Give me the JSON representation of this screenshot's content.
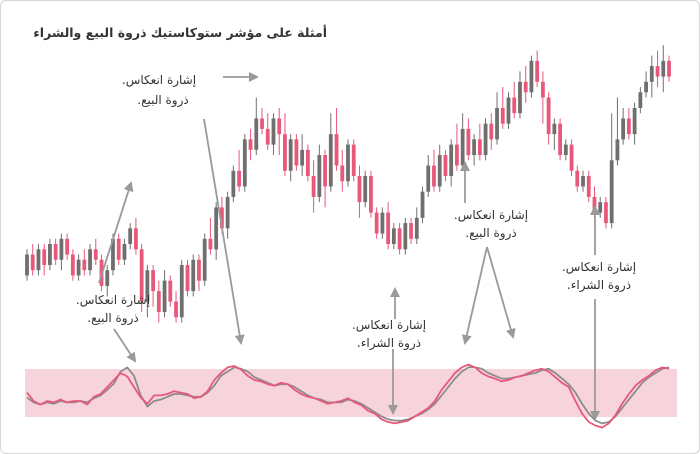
{
  "title": "أمثلة على مؤشر ستوكاستيك ذروة البيع والشراء",
  "annotations": [
    {
      "id": "a1",
      "line1": "إشارة انعكاس.",
      "line2": "ذروة البيع."
    },
    {
      "id": "a2",
      "line1": "إشارة انعكاس.",
      "line2": "ذروة البيع."
    },
    {
      "id": "a3",
      "line1": "إشارة انعكاس.",
      "line2": "ذروة الشراء."
    },
    {
      "id": "a4",
      "line1": "إشارة انعكاس.",
      "line2": "ذروة البيع."
    },
    {
      "id": "a5",
      "line1": "إشارة انعكاس.",
      "line2": "ذروة الشراء."
    }
  ],
  "colors": {
    "bull": "#6f6f6f",
    "bear": "#e8587a",
    "band": "#f7d3db",
    "k_line": "#e8587a",
    "d_line": "#8c8c8c",
    "arrow": "#9a9a9a"
  },
  "chart_data": {
    "type": "candlestick",
    "candles": [
      [
        21,
        25,
        20,
        26
      ],
      [
        25,
        22,
        21,
        27
      ],
      [
        22,
        26,
        21,
        27
      ],
      [
        26,
        23,
        21,
        27
      ],
      [
        23,
        27,
        22,
        28
      ],
      [
        27,
        24,
        23,
        28
      ],
      [
        24,
        28,
        22,
        29
      ],
      [
        28,
        25,
        24,
        29
      ],
      [
        25,
        21,
        20,
        26
      ],
      [
        21,
        24,
        20,
        25
      ],
      [
        24,
        22,
        21,
        26
      ],
      [
        22,
        26,
        21,
        27
      ],
      [
        26,
        24,
        23,
        28
      ],
      [
        24,
        19,
        18,
        25
      ],
      [
        19,
        22,
        17,
        23
      ],
      [
        22,
        28,
        21,
        29
      ],
      [
        28,
        24,
        23,
        29
      ],
      [
        24,
        27,
        23,
        28
      ],
      [
        27,
        30,
        26,
        31
      ],
      [
        30,
        26,
        25,
        32
      ],
      [
        26,
        16,
        14,
        27
      ],
      [
        16,
        22,
        13,
        23
      ],
      [
        22,
        18,
        15,
        23
      ],
      [
        18,
        14,
        12,
        20
      ],
      [
        14,
        20,
        13,
        22
      ],
      [
        20,
        16,
        15,
        21
      ],
      [
        16,
        13,
        12,
        18
      ],
      [
        13,
        23,
        12,
        24
      ],
      [
        23,
        18,
        17,
        24
      ],
      [
        18,
        24,
        17,
        25
      ],
      [
        24,
        20,
        18,
        25
      ],
      [
        20,
        28,
        19,
        29
      ],
      [
        28,
        26,
        25,
        32
      ],
      [
        26,
        34,
        24,
        35
      ],
      [
        34,
        30,
        29,
        36
      ],
      [
        30,
        36,
        28,
        37
      ],
      [
        36,
        41,
        35,
        42
      ],
      [
        41,
        38,
        37,
        45
      ],
      [
        38,
        47,
        37,
        48
      ],
      [
        47,
        45,
        43,
        49
      ],
      [
        45,
        51,
        44,
        55
      ],
      [
        51,
        49,
        48,
        53
      ],
      [
        49,
        46,
        45,
        52
      ],
      [
        46,
        51,
        44,
        52
      ],
      [
        51,
        48,
        44,
        53
      ],
      [
        48,
        41,
        40,
        52
      ],
      [
        41,
        47,
        39,
        48
      ],
      [
        47,
        42,
        41,
        48
      ],
      [
        42,
        45,
        40,
        48
      ],
      [
        45,
        40,
        39,
        46
      ],
      [
        40,
        36,
        33,
        43
      ],
      [
        36,
        44,
        35,
        46
      ],
      [
        44,
        38,
        34,
        45
      ],
      [
        38,
        48,
        37,
        52
      ],
      [
        48,
        42,
        41,
        53
      ],
      [
        42,
        39,
        37,
        45
      ],
      [
        39,
        46,
        38,
        47
      ],
      [
        46,
        40,
        39,
        47
      ],
      [
        40,
        35,
        32,
        42
      ],
      [
        35,
        40,
        34,
        41
      ],
      [
        40,
        33,
        32,
        41
      ],
      [
        33,
        29,
        28,
        34
      ],
      [
        29,
        33,
        28,
        34
      ],
      [
        33,
        27,
        26,
        35
      ],
      [
        27,
        30,
        26,
        31
      ],
      [
        30,
        26,
        25,
        31
      ],
      [
        26,
        31,
        25,
        32
      ],
      [
        31,
        28,
        27,
        32
      ],
      [
        28,
        32,
        27,
        34
      ],
      [
        32,
        37,
        31,
        38
      ],
      [
        37,
        42,
        36,
        44
      ],
      [
        42,
        38,
        37,
        45
      ],
      [
        38,
        44,
        37,
        46
      ],
      [
        44,
        40,
        39,
        45
      ],
      [
        40,
        46,
        38,
        47
      ],
      [
        46,
        42,
        41,
        50
      ],
      [
        42,
        49,
        41,
        52
      ],
      [
        49,
        44,
        43,
        51
      ],
      [
        44,
        47,
        42,
        48
      ],
      [
        47,
        44,
        43,
        50
      ],
      [
        44,
        50,
        43,
        51
      ],
      [
        50,
        47,
        45,
        52
      ],
      [
        47,
        53,
        46,
        56
      ],
      [
        53,
        50,
        49,
        57
      ],
      [
        50,
        55,
        49,
        56
      ],
      [
        55,
        52,
        51,
        58
      ],
      [
        52,
        58,
        51,
        60
      ],
      [
        58,
        56,
        54,
        61
      ],
      [
        56,
        62,
        55,
        63
      ],
      [
        62,
        58,
        57,
        64
      ],
      [
        58,
        55,
        50,
        60
      ],
      [
        55,
        48,
        46,
        56
      ],
      [
        48,
        50,
        45,
        51
      ],
      [
        50,
        44,
        43,
        51
      ],
      [
        44,
        46,
        43,
        47
      ],
      [
        46,
        41,
        40,
        47
      ],
      [
        41,
        38,
        37,
        42
      ],
      [
        38,
        40,
        37,
        41
      ],
      [
        40,
        36,
        35,
        41
      ],
      [
        36,
        33,
        32,
        38
      ],
      [
        33,
        35,
        32,
        36
      ],
      [
        35,
        31,
        30,
        36
      ],
      [
        31,
        43,
        30,
        52
      ],
      [
        43,
        47,
        42,
        55
      ],
      [
        47,
        51,
        46,
        53
      ],
      [
        51,
        48,
        47,
        53
      ],
      [
        48,
        53,
        46,
        54
      ],
      [
        53,
        56,
        52,
        57
      ],
      [
        56,
        58,
        55,
        60
      ],
      [
        58,
        61,
        55,
        63
      ],
      [
        61,
        59,
        57,
        64
      ],
      [
        59,
        62,
        56,
        65
      ],
      [
        62,
        59,
        58,
        63
      ]
    ],
    "stoch_k": [
      52,
      40,
      35,
      40,
      38,
      42,
      38,
      40,
      40,
      35,
      46,
      50,
      60,
      70,
      80,
      75,
      60,
      45,
      36,
      48,
      48,
      50,
      54,
      52,
      50,
      44,
      46,
      54,
      70,
      80,
      88,
      90,
      85,
      76,
      70,
      68,
      64,
      62,
      66,
      64,
      56,
      50,
      46,
      44,
      40,
      36,
      38,
      40,
      44,
      38,
      34,
      26,
      22,
      14,
      10,
      8,
      10,
      12,
      18,
      24,
      30,
      40,
      56,
      68,
      80,
      88,
      92,
      88,
      80,
      75,
      72,
      68,
      70,
      74,
      76,
      80,
      84,
      86,
      82,
      74,
      66,
      60,
      40,
      22,
      10,
      5,
      2,
      8,
      20,
      36,
      50,
      62,
      70,
      76,
      84,
      88,
      86
    ],
    "stoch_d": [
      45,
      38,
      35,
      38,
      36,
      40,
      38,
      38,
      40,
      38,
      44,
      48,
      56,
      65,
      82,
      88,
      76,
      48,
      32,
      40,
      42,
      46,
      50,
      50,
      48,
      46,
      46,
      52,
      62,
      76,
      82,
      88,
      86,
      82,
      74,
      70,
      66,
      62,
      64,
      64,
      60,
      54,
      48,
      44,
      42,
      38,
      38,
      38,
      42,
      40,
      36,
      30,
      24,
      18,
      14,
      12,
      12,
      14,
      18,
      22,
      28,
      36,
      48,
      60,
      72,
      82,
      88,
      88,
      86,
      80,
      76,
      72,
      72,
      74,
      76,
      78,
      80,
      84,
      86,
      80,
      72,
      64,
      52,
      36,
      22,
      12,
      8,
      10,
      18,
      30,
      42,
      54,
      66,
      74,
      80,
      86,
      88
    ],
    "ylim": [
      10,
      70
    ],
    "stoch_ylim": [
      0,
      100
    ],
    "overbought": 80,
    "oversold": 20
  }
}
